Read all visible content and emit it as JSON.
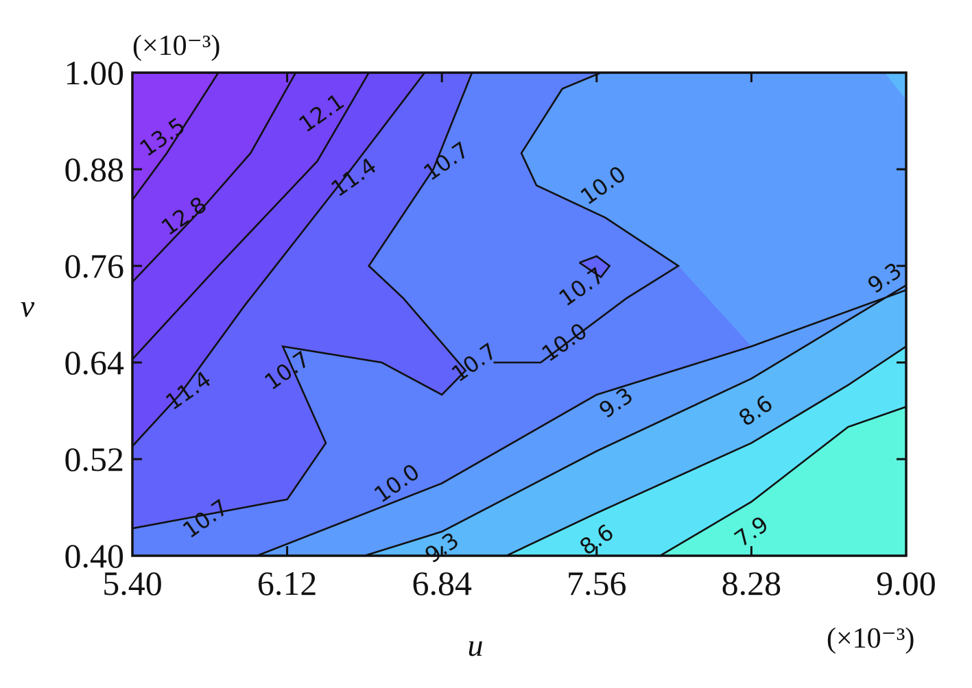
{
  "chart_data": {
    "type": "contour",
    "title": "",
    "xlabel": "u",
    "ylabel": "v",
    "x_multiplier": "(×10⁻³)",
    "y_multiplier": "(×10⁻³)",
    "x_ticks": [
      "5.40",
      "6.12",
      "6.84",
      "7.56",
      "8.28",
      "9.00"
    ],
    "y_ticks": [
      "0.40",
      "0.52",
      "0.64",
      "0.76",
      "0.88",
      "1.00"
    ],
    "xlim": [
      5.4,
      9.0
    ],
    "ylim": [
      0.4,
      1.0
    ],
    "contour_levels": [
      7.9,
      8.6,
      9.3,
      10.0,
      10.7,
      11.4,
      12.1,
      12.8,
      13.5
    ],
    "colors": {
      "low": "#5cfadf",
      "high": "#8a3cf7",
      "line": "#111111"
    },
    "bands": [
      {
        "level": "lt-7.9",
        "color": "#5cf6df"
      },
      {
        "level": "7.9-8.6",
        "color": "#5ae3f8"
      },
      {
        "level": "8.6-9.3",
        "color": "#5ab8fb"
      },
      {
        "level": "9.3-10.0",
        "color": "#5c9cfd"
      },
      {
        "level": "10.0-10.7",
        "color": "#5d80fc"
      },
      {
        "level": "10.7-11.4",
        "color": "#6263fa"
      },
      {
        "level": "11.4-12.1",
        "color": "#6a4cf9"
      },
      {
        "level": "12.1-12.8",
        "color": "#7444f8"
      },
      {
        "level": "12.8-13.5",
        "color": "#7e3ff7"
      },
      {
        "level": "gt-13.5",
        "color": "#8a3cf7"
      }
    ],
    "contours": [
      {
        "level": 7.9,
        "points": [
          [
            7.855,
            0.4
          ],
          [
            8.28,
            0.467
          ],
          [
            8.73,
            0.56
          ],
          [
            9.0,
            0.585
          ]
        ]
      },
      {
        "level": 8.6,
        "points": [
          [
            7.14,
            0.4
          ],
          [
            7.56,
            0.453
          ],
          [
            8.28,
            0.54
          ],
          [
            8.73,
            0.612
          ],
          [
            9.0,
            0.66
          ]
        ]
      },
      {
        "level": 9.3,
        "points": [
          [
            6.48,
            0.4
          ],
          [
            6.84,
            0.43
          ],
          [
            7.56,
            0.53
          ],
          [
            8.28,
            0.62
          ],
          [
            9.0,
            0.736
          ]
        ]
      },
      {
        "level": 10.0,
        "points": [
          [
            5.98,
            0.4
          ],
          [
            6.84,
            0.49
          ],
          [
            7.56,
            0.6
          ],
          [
            8.28,
            0.66
          ],
          [
            9.0,
            0.73
          ]
        ]
      },
      {
        "level": 10.0,
        "points": [
          [
            7.58,
            1.0
          ],
          [
            7.4,
            0.98
          ],
          [
            7.21,
            0.9
          ],
          [
            7.28,
            0.86
          ],
          [
            7.6,
            0.82
          ],
          [
            7.94,
            0.76
          ],
          [
            7.7,
            0.72
          ],
          [
            7.3,
            0.64
          ],
          [
            7.08,
            0.64
          ]
        ]
      },
      {
        "level": 10.7,
        "points": [
          [
            5.4,
            0.434
          ],
          [
            6.12,
            0.47
          ],
          [
            6.3,
            0.54
          ],
          [
            6.1,
            0.66
          ],
          [
            6.56,
            0.64
          ],
          [
            6.84,
            0.6
          ],
          [
            6.95,
            0.63
          ],
          [
            6.66,
            0.72
          ],
          [
            6.5,
            0.76
          ],
          [
            6.8,
            0.88
          ],
          [
            6.98,
            1.0
          ]
        ]
      },
      {
        "level": 10.7,
        "points": [
          [
            7.48,
            0.764
          ],
          [
            7.56,
            0.772
          ],
          [
            7.62,
            0.76
          ],
          [
            7.58,
            0.746
          ],
          [
            7.48,
            0.764
          ]
        ]
      },
      {
        "level": 11.4,
        "points": [
          [
            5.4,
            0.536
          ],
          [
            5.62,
            0.6
          ],
          [
            5.92,
            0.71
          ],
          [
            6.36,
            0.86
          ],
          [
            6.76,
            1.0
          ]
        ]
      },
      {
        "level": 12.1,
        "points": [
          [
            5.4,
            0.644
          ],
          [
            5.8,
            0.76
          ],
          [
            6.26,
            0.89
          ],
          [
            6.5,
            1.0
          ]
        ]
      },
      {
        "level": 12.8,
        "points": [
          [
            5.4,
            0.74
          ],
          [
            5.72,
            0.83
          ],
          [
            5.95,
            0.9
          ],
          [
            6.16,
            1.0
          ]
        ]
      },
      {
        "level": 13.5,
        "points": [
          [
            5.4,
            0.842
          ],
          [
            5.56,
            0.9
          ],
          [
            5.8,
            1.0
          ]
        ]
      }
    ],
    "contour_labels": [
      {
        "text": "7.9",
        "x": 8.28,
        "y": 0.43
      },
      {
        "text": "8.6",
        "x": 7.56,
        "y": 0.42
      },
      {
        "text": "8.6",
        "x": 8.3,
        "y": 0.58
      },
      {
        "text": "9.3",
        "x": 6.84,
        "y": 0.41
      },
      {
        "text": "9.3",
        "x": 7.65,
        "y": 0.59
      },
      {
        "text": "9.3",
        "x": 8.9,
        "y": 0.745
      },
      {
        "text": "10.0",
        "x": 6.63,
        "y": 0.49
      },
      {
        "text": "10.0",
        "x": 7.41,
        "y": 0.665
      },
      {
        "text": "10.0",
        "x": 7.59,
        "y": 0.86
      },
      {
        "text": "10.7",
        "x": 5.74,
        "y": 0.446
      },
      {
        "text": "10.7",
        "x": 6.12,
        "y": 0.63
      },
      {
        "text": "10.7",
        "x": 6.99,
        "y": 0.64
      },
      {
        "text": "10.7",
        "x": 7.49,
        "y": 0.734
      },
      {
        "text": "10.7",
        "x": 6.86,
        "y": 0.89
      },
      {
        "text": "11.4",
        "x": 5.66,
        "y": 0.605
      },
      {
        "text": "11.4",
        "x": 6.43,
        "y": 0.87
      },
      {
        "text": "12.1",
        "x": 6.28,
        "y": 0.95
      },
      {
        "text": "12.8",
        "x": 5.64,
        "y": 0.822
      },
      {
        "text": "13.5",
        "x": 5.54,
        "y": 0.92
      }
    ]
  }
}
